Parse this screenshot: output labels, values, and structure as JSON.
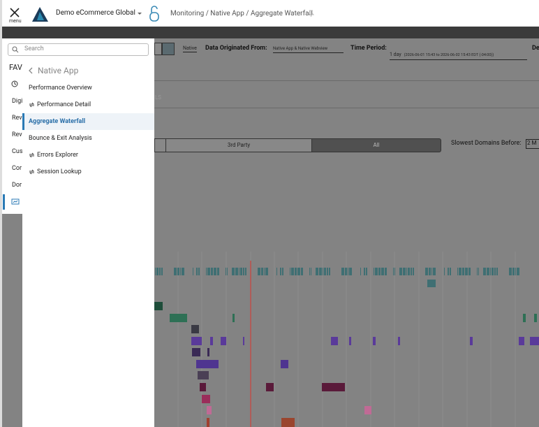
{
  "header": {
    "menu_label": "menu",
    "account": "Demo eCommerce Global",
    "breadcrumb": "Monitoring / Native App / Aggregate Waterfall"
  },
  "sidebar": {
    "search_placeholder": "Search",
    "items": [
      "FAV",
      "Digi",
      "Rev",
      "Rev",
      "Cus",
      "Cor",
      "Dor"
    ]
  },
  "submenu": {
    "title": "Native App",
    "items": [
      "Performance Overview",
      "Performance Detail",
      "Aggregate Waterfall",
      "Bounce & Exit Analysis",
      "Errors Explorer",
      "Session Lookup"
    ]
  },
  "toolbar": {
    "native_tab": "Native",
    "origin_label": "Data Originated From:",
    "origin_value": "Native App & Native Webview",
    "period_label": "Time Period:",
    "period_value": "1 day",
    "period_range": "(2026-06-01 15:43 to 2026-06-02 15:43 EDT (-04:00))",
    "more": "De"
  },
  "tab_fragment": "LS",
  "filter": {
    "options": [
      "3rd Party",
      "All"
    ],
    "slowest_label": "Slowest Domains Before:",
    "slowest_value": "2 M"
  }
}
